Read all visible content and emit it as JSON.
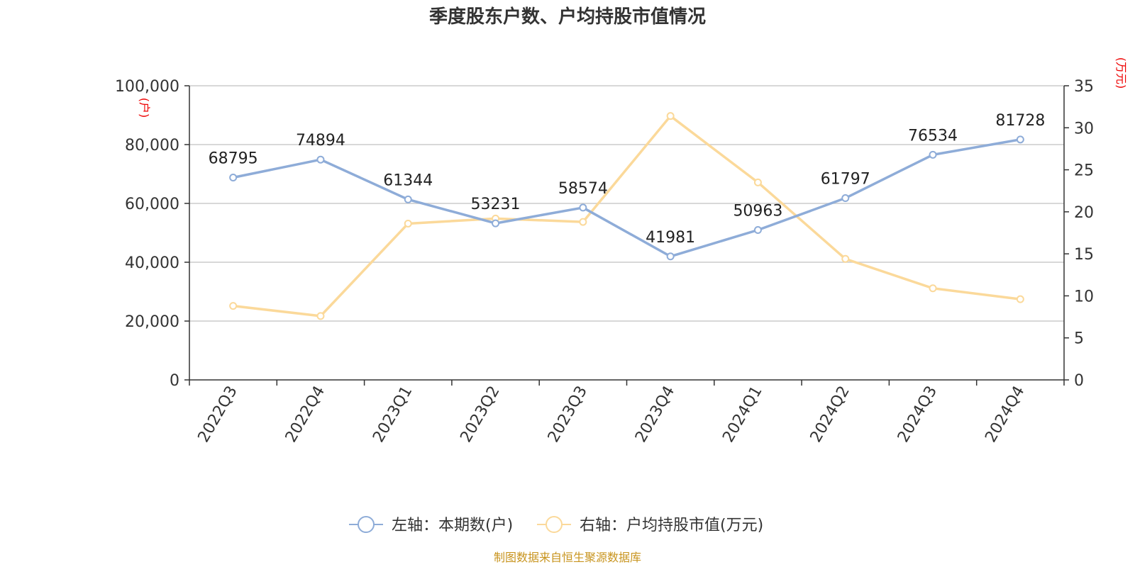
{
  "chart_data": {
    "type": "line",
    "title": "季度股东户数、户均持股市值情况",
    "categories": [
      "2022Q3",
      "2022Q4",
      "2023Q1",
      "2023Q2",
      "2023Q3",
      "2023Q4",
      "2024Q1",
      "2024Q2",
      "2024Q3",
      "2024Q4"
    ],
    "left_axis": {
      "unit": "(户)",
      "ylim": [
        0,
        100000
      ],
      "ticks": [
        "0",
        "20,000",
        "40,000",
        "60,000",
        "80,000",
        "100,000"
      ],
      "tick_values": [
        0,
        20000,
        40000,
        60000,
        80000,
        100000
      ]
    },
    "right_axis": {
      "unit": "(万元)",
      "ylim": [
        0,
        35
      ],
      "ticks": [
        "0",
        "5",
        "10",
        "15",
        "20",
        "25",
        "30",
        "35"
      ],
      "tick_values": [
        0,
        5,
        10,
        15,
        20,
        25,
        30,
        35
      ]
    },
    "series": [
      {
        "name": "左轴：本期数(户)",
        "axis": "left",
        "color": "#8eacd8",
        "values": [
          68795,
          74894,
          61344,
          53231,
          58574,
          41981,
          50963,
          61797,
          76534,
          81728
        ],
        "labels": [
          "68795",
          "74894",
          "61344",
          "53231",
          "58574",
          "41981",
          "50963",
          "61797",
          "76534",
          "81728"
        ]
      },
      {
        "name": "右轴：户均持股市值(万元)",
        "axis": "right",
        "color": "#fbd99a",
        "values": [
          8.8,
          7.6,
          18.6,
          19.2,
          18.8,
          31.4,
          23.5,
          14.4,
          10.9,
          9.6
        ]
      }
    ],
    "grid": true,
    "legend_position": "bottom-center"
  },
  "source": "制图数据来自恒生聚源数据库"
}
